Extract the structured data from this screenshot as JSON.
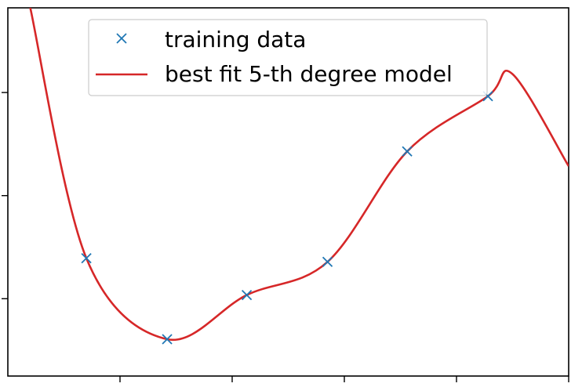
{
  "chart_data": {
    "type": "line",
    "title": "",
    "xlabel": "",
    "ylabel": "",
    "xlim": [
      0,
      5
    ],
    "ylim": [
      0,
      10
    ],
    "grid": false,
    "legend_placement": "top-center",
    "series": [
      {
        "name": "training data",
        "kind": "scatter",
        "marker": "x",
        "color": "#1f77b4",
        "x": [
          0.7,
          1.42,
          2.13,
          2.85,
          3.56,
          4.28
        ],
        "y": [
          3.2,
          1.0,
          2.2,
          3.1,
          6.1,
          7.6
        ]
      },
      {
        "name": "best fit 5-th degree model",
        "kind": "line",
        "color": "#d62728",
        "x": [
          0.2,
          0.7,
          1.42,
          2.13,
          2.85,
          3.56,
          4.28,
          4.5,
          5.0
        ],
        "y": [
          10.0,
          3.2,
          1.0,
          2.2,
          3.1,
          6.1,
          7.6,
          8.2,
          5.7
        ]
      }
    ]
  }
}
